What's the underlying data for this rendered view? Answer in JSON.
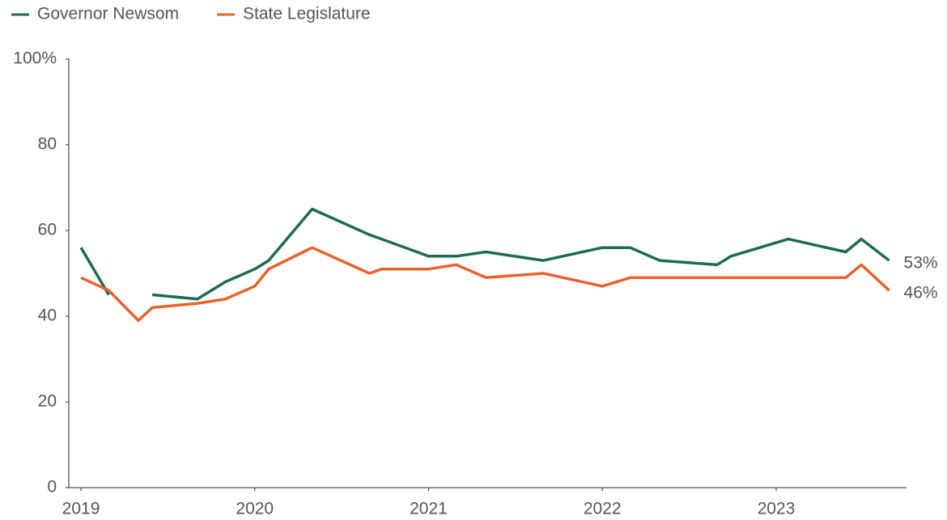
{
  "chart_data": {
    "type": "line",
    "x": [
      2019.0,
      2019.16,
      2019.33,
      2019.41,
      2019.67,
      2019.83,
      2020.0,
      2020.08,
      2020.33,
      2020.66,
      2020.73,
      2021.0,
      2021.16,
      2021.33,
      2021.66,
      2022.0,
      2022.16,
      2022.33,
      2022.66,
      2022.74,
      2023.07,
      2023.4,
      2023.49,
      2023.65
    ],
    "series": [
      {
        "name": "Governor Newsom",
        "color": "#1e6b52",
        "values": [
          56,
          45,
          null,
          45,
          44,
          48,
          51,
          53,
          65,
          59,
          58,
          54,
          54,
          55,
          53,
          56,
          56,
          53,
          52,
          54,
          58,
          55,
          58,
          53
        ],
        "value_labels": [
          null,
          null,
          null,
          null,
          null,
          null,
          null,
          null,
          null,
          null,
          null,
          null,
          null,
          null,
          null,
          null,
          null,
          null,
          null,
          null,
          null,
          null,
          null,
          "53%"
        ]
      },
      {
        "name": "State Legislature",
        "color": "#e8632b",
        "values": [
          49,
          46,
          39,
          42,
          43,
          44,
          47,
          51,
          56,
          50,
          51,
          51,
          52,
          49,
          50,
          47,
          49,
          49,
          49,
          49,
          49,
          49,
          52,
          46
        ],
        "value_labels": [
          null,
          null,
          null,
          null,
          null,
          null,
          null,
          null,
          null,
          null,
          null,
          null,
          null,
          null,
          null,
          null,
          null,
          null,
          null,
          null,
          null,
          null,
          null,
          "46%"
        ]
      }
    ],
    "xlim": [
      2018.93,
      2023.75
    ],
    "xticks": [
      2019,
      2020,
      2021,
      2022,
      2023
    ],
    "ylim": [
      0,
      100
    ],
    "yticks": [
      0,
      20,
      40,
      60,
      80,
      {
        "value": 100,
        "label": "100%"
      }
    ],
    "grid": false,
    "legend": "top-left"
  }
}
